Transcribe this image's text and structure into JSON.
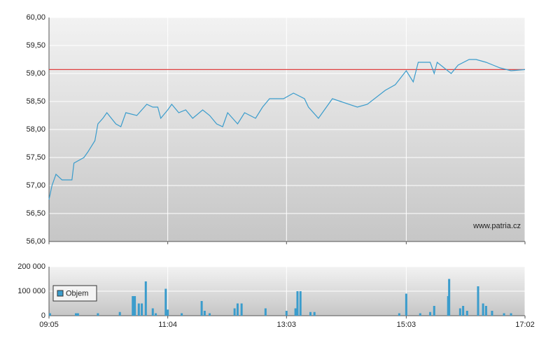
{
  "chart_data": [
    {
      "type": "line",
      "color": "#3a9ccc",
      "x": [
        "09:05",
        "09:08",
        "09:12",
        "09:18",
        "09:28",
        "09:30",
        "09:40",
        "09:44",
        "09:51",
        "09:54",
        "09:59",
        "10:03",
        "10:12",
        "10:17",
        "10:22",
        "10:33",
        "10:43",
        "10:49",
        "10:54",
        "10:57",
        "11:04",
        "11:08",
        "11:15",
        "11:22",
        "11:29",
        "11:39",
        "11:46",
        "11:53",
        "11:59",
        "12:04",
        "12:14",
        "12:21",
        "12:32",
        "12:39",
        "12:46",
        "13:00",
        "13:10",
        "13:21",
        "13:25",
        "13:35",
        "13:49",
        "14:14",
        "14:24",
        "14:42",
        "14:52",
        "15:03",
        "15:10",
        "15:15",
        "15:27",
        "15:31",
        "15:34",
        "15:48",
        "15:55",
        "16:06",
        "16:13",
        "16:23",
        "16:30",
        "16:37",
        "16:48",
        "17:02"
      ],
      "values": [
        56.75,
        57.0,
        57.2,
        57.1,
        57.1,
        57.4,
        57.5,
        57.6,
        57.8,
        58.1,
        58.2,
        58.3,
        58.1,
        58.05,
        58.3,
        58.25,
        58.45,
        58.4,
        58.4,
        58.2,
        58.35,
        58.45,
        58.3,
        58.35,
        58.2,
        58.35,
        58.25,
        58.1,
        58.05,
        58.3,
        58.1,
        58.3,
        58.2,
        58.4,
        58.55,
        58.55,
        58.65,
        58.55,
        58.4,
        58.2,
        58.55,
        58.4,
        58.45,
        58.7,
        58.8,
        59.05,
        58.85,
        59.2,
        59.2,
        59.0,
        59.2,
        59.0,
        59.15,
        59.25,
        59.25,
        59.2,
        59.15,
        59.1,
        59.05,
        59.07
      ],
      "xlim": [
        "09:05",
        "17:02"
      ],
      "ylim": [
        56,
        60
      ],
      "yticks": [
        {
          "value": 56,
          "label": "56,00"
        },
        {
          "value": 56.5,
          "label": "56,50"
        },
        {
          "value": 57,
          "label": "57,00"
        },
        {
          "value": 57.5,
          "label": "57,50"
        },
        {
          "value": 58,
          "label": "58,00"
        },
        {
          "value": 58.5,
          "label": "58,50"
        },
        {
          "value": 59,
          "label": "59,00"
        },
        {
          "value": 59.5,
          "label": "59,50"
        },
        {
          "value": 60,
          "label": "60,00"
        }
      ],
      "reference_line": {
        "value": 59.07,
        "color": "#e04040"
      },
      "watermark": "www.patria.cz",
      "grid": true
    },
    {
      "type": "bar",
      "x": [
        "09:06",
        "09:32",
        "09:34",
        "09:54",
        "10:16",
        "10:29",
        "10:31",
        "10:35",
        "10:38",
        "10:42",
        "10:49",
        "10:52",
        "11:02",
        "11:04",
        "11:18",
        "11:38",
        "11:41",
        "11:46",
        "12:11",
        "12:14",
        "12:18",
        "12:42",
        "13:03",
        "13:12",
        "13:14",
        "13:17",
        "13:27",
        "13:31",
        "14:56",
        "15:03",
        "15:17",
        "15:27",
        "15:31",
        "15:45",
        "15:46",
        "15:57",
        "16:00",
        "16:04",
        "16:15",
        "16:20",
        "16:23",
        "16:29",
        "16:41",
        "16:48"
      ],
      "series": [
        {
          "name": "Objem",
          "color": "#3a9ccc",
          "values": [
            10000,
            10000,
            10000,
            10000,
            15000,
            80000,
            80000,
            50000,
            50000,
            140000,
            30000,
            10000,
            110000,
            25000,
            10000,
            60000,
            20000,
            10000,
            30000,
            50000,
            50000,
            30000,
            20000,
            30000,
            100000,
            100000,
            15000,
            15000,
            10000,
            90000,
            10000,
            15000,
            40000,
            80000,
            150000,
            30000,
            40000,
            20000,
            120000,
            50000,
            40000,
            20000,
            10000,
            10000
          ]
        }
      ],
      "xlim": [
        "09:05",
        "17:02"
      ],
      "xticks": [
        "09:05",
        "11:04",
        "13:03",
        "15:03",
        "17:02"
      ],
      "ylim": [
        0,
        200000
      ],
      "yticks": [
        0,
        {
          "value": 100000,
          "label": "100 000"
        },
        {
          "value": 200000,
          "label": "200 000"
        }
      ],
      "legend": "left",
      "grid": true
    }
  ]
}
